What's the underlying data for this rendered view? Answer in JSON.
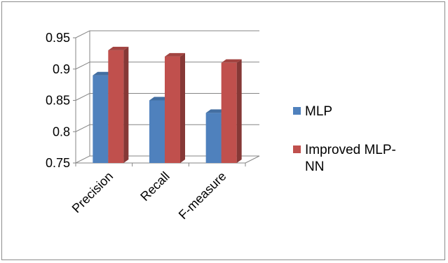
{
  "chart_data": {
    "type": "bar",
    "categories": [
      "Precision",
      "Recall",
      "F-measure"
    ],
    "series": [
      {
        "name": "MLP",
        "values": [
          0.89,
          0.85,
          0.83
        ],
        "color": "#4F81BD"
      },
      {
        "name": "Improved MLP-NN",
        "values": [
          0.93,
          0.92,
          0.91
        ],
        "color": "#C0504D"
      }
    ],
    "y_ticks": [
      "0.75",
      "0.8",
      "0.85",
      "0.9",
      "0.95"
    ],
    "ylim": [
      0.75,
      0.95
    ],
    "grid": true,
    "legend_position": "right",
    "style": "3d-clustered-column"
  }
}
